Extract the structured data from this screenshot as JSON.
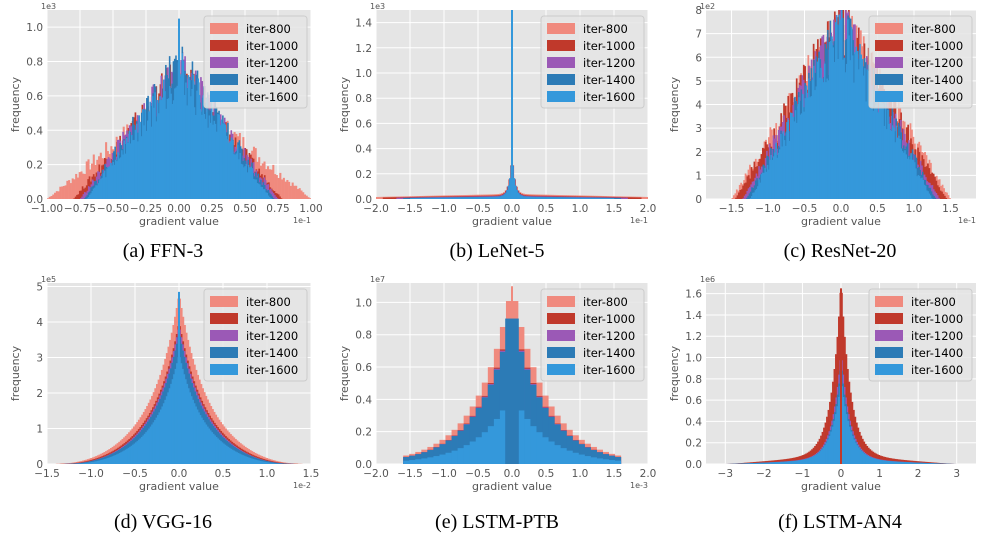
{
  "legend_entries": [
    "iter-800",
    "iter-1000",
    "iter-1200",
    "iter-1400",
    "iter-1600"
  ],
  "series_colors": [
    "#f08a7e",
    "#c0392b",
    "#9b59b6",
    "#2c7bb6",
    "#3498db"
  ],
  "chart_data": [
    {
      "type": "bar",
      "caption": "(a) FFN-3",
      "xlabel": "gradient value",
      "ylabel": "frequency",
      "x_multiplier": "1e-1",
      "y_multiplier": "1e3",
      "xlim": [
        -1.0,
        1.0
      ],
      "ylim": [
        0,
        1.1
      ],
      "xticks": [
        -1.0,
        -0.75,
        -0.5,
        -0.25,
        0.0,
        0.25,
        0.5,
        0.75,
        1.0
      ],
      "xtick_labels": [
        "−1.00",
        "−0.75",
        "−0.50",
        "−0.25",
        "0.00",
        "0.25",
        "0.50",
        "0.75",
        "1.00"
      ],
      "yticks": [
        0.0,
        0.2,
        0.4,
        0.6,
        0.8,
        1.0
      ],
      "ytick_labels": [
        "0.0",
        "0.2",
        "0.4",
        "0.6",
        "0.8",
        "1.0"
      ],
      "shape": "triangle",
      "noisy": true,
      "series": [
        {
          "name": "iter-800",
          "range": [
            -1.0,
            1.0
          ],
          "peak": 0.62
        },
        {
          "name": "iter-1000",
          "range": [
            -0.8,
            0.78
          ],
          "peak": 0.72
        },
        {
          "name": "iter-1200",
          "range": [
            -0.75,
            0.75
          ],
          "peak": 0.76
        },
        {
          "name": "iter-1400",
          "range": [
            -0.72,
            0.72
          ],
          "peak": 0.78
        },
        {
          "name": "iter-1600",
          "range": [
            -0.7,
            0.7
          ],
          "peak": 0.74
        }
      ],
      "max_spike": 1.05,
      "legend": "top-right",
      "grid": true
    },
    {
      "type": "bar",
      "caption": "(b) LeNet-5",
      "xlabel": "gradient value",
      "ylabel": "frequency",
      "x_multiplier": "1e-1",
      "y_multiplier": "1e3",
      "xlim": [
        -2.0,
        2.0
      ],
      "ylim": [
        0,
        1.5
      ],
      "xticks": [
        -2.0,
        -1.5,
        -1.0,
        -0.5,
        0.0,
        0.5,
        1.0,
        1.5,
        2.0
      ],
      "xtick_labels": [
        "−2.0",
        "−1.5",
        "−1.0",
        "−0.5",
        "0.0",
        "0.5",
        "1.0",
        "1.5",
        "2.0"
      ],
      "yticks": [
        0.0,
        0.2,
        0.4,
        0.6,
        0.8,
        1.0,
        1.2,
        1.4
      ],
      "ytick_labels": [
        "0.0",
        "0.2",
        "0.4",
        "0.6",
        "0.8",
        "1.0",
        "1.2",
        "1.4"
      ],
      "shape": "spike",
      "noisy": false,
      "series": [
        {
          "name": "iter-800",
          "range": [
            -2.0,
            2.0
          ],
          "peak": 0.36,
          "floor": 0.04
        },
        {
          "name": "iter-1000",
          "range": [
            -1.9,
            1.9
          ],
          "peak": 0.35,
          "floor": 0.03
        },
        {
          "name": "iter-1200",
          "range": [
            -1.7,
            1.7
          ],
          "peak": 0.34,
          "floor": 0.025
        },
        {
          "name": "iter-1400",
          "range": [
            -1.6,
            1.6
          ],
          "peak": 0.34,
          "floor": 0.02
        },
        {
          "name": "iter-1600",
          "range": [
            -1.5,
            1.5
          ],
          "peak": 0.33,
          "floor": 0.018
        }
      ],
      "max_spike": 1.5,
      "legend": "top-right",
      "grid": true
    },
    {
      "type": "bar",
      "caption": "(c) ResNet-20",
      "xlabel": "gradient value",
      "ylabel": "frequency",
      "x_multiplier": "1e-1",
      "y_multiplier": "1e2",
      "xlim": [
        -1.85,
        1.85
      ],
      "ylim": [
        0,
        8.0
      ],
      "xticks": [
        -1.5,
        -1.0,
        -0.5,
        0.0,
        0.5,
        1.0,
        1.5
      ],
      "xtick_labels": [
        "−1.5",
        "−1.0",
        "−0.5",
        "0.0",
        "0.5",
        "1.0",
        "1.5"
      ],
      "yticks": [
        0,
        1,
        2,
        3,
        4,
        5,
        6,
        7,
        8
      ],
      "ytick_labels": [
        "0",
        "1",
        "2",
        "3",
        "4",
        "5",
        "6",
        "7",
        "8"
      ],
      "shape": "triangle",
      "noisy": true,
      "series": [
        {
          "name": "iter-800",
          "range": [
            -1.5,
            1.5
          ],
          "peak": 7.3
        },
        {
          "name": "iter-1000",
          "range": [
            -1.45,
            1.45
          ],
          "peak": 7.4
        },
        {
          "name": "iter-1200",
          "range": [
            -1.35,
            1.35
          ],
          "peak": 7.2
        },
        {
          "name": "iter-1400",
          "range": [
            -1.3,
            1.3
          ],
          "peak": 7.1
        },
        {
          "name": "iter-1600",
          "range": [
            -1.25,
            1.25
          ],
          "peak": 7.0
        }
      ],
      "max_spike": 7.6,
      "legend": "top-right",
      "grid": true
    },
    {
      "type": "bar",
      "caption": "(d) VGG-16",
      "xlabel": "gradient value",
      "ylabel": "frequency",
      "x_multiplier": "1e-2",
      "y_multiplier": "1e5",
      "xlim": [
        -1.5,
        1.5
      ],
      "ylim": [
        0,
        5.1
      ],
      "xticks": [
        -1.5,
        -1.0,
        -0.5,
        0.0,
        0.5,
        1.0,
        1.5
      ],
      "xtick_labels": [
        "−1.5",
        "−1.0",
        "−0.5",
        "0.0",
        "0.5",
        "1.0",
        "1.5"
      ],
      "yticks": [
        0,
        1,
        2,
        3,
        4,
        5
      ],
      "ytick_labels": [
        "0",
        "1",
        "2",
        "3",
        "4",
        "5"
      ],
      "shape": "cusp",
      "noisy": false,
      "series": [
        {
          "name": "iter-800",
          "range": [
            -1.4,
            1.4
          ],
          "peak": 4.8
        },
        {
          "name": "iter-1000",
          "range": [
            -1.35,
            1.35
          ],
          "peak": 4.0
        },
        {
          "name": "iter-1200",
          "range": [
            -1.3,
            1.3
          ],
          "peak": 3.9
        },
        {
          "name": "iter-1400",
          "range": [
            -1.3,
            1.3
          ],
          "peak": 3.7
        },
        {
          "name": "iter-1600",
          "range": [
            -1.25,
            1.25
          ],
          "peak": 3.1
        }
      ],
      "max_spike": 4.85,
      "legend": "top-right",
      "grid": true
    },
    {
      "type": "bar",
      "caption": "(e) LSTM-PTB",
      "xlabel": "gradient value",
      "ylabel": "frequency",
      "x_multiplier": "1e-3",
      "y_multiplier": "1e7",
      "xlim": [
        -2.0,
        2.0
      ],
      "ylim": [
        0,
        1.12
      ],
      "xticks": [
        -2.0,
        -1.5,
        -1.0,
        -0.5,
        0.0,
        0.5,
        1.0,
        1.5,
        2.0
      ],
      "xtick_labels": [
        "−2.0",
        "−1.5",
        "−1.0",
        "−0.5",
        "0.0",
        "0.5",
        "1.0",
        "1.5",
        "2.0"
      ],
      "yticks": [
        0.0,
        0.2,
        0.4,
        0.6,
        0.8,
        1.0
      ],
      "ytick_labels": [
        "0.0",
        "0.2",
        "0.4",
        "0.6",
        "0.8",
        "1.0"
      ],
      "shape": "coarse",
      "noisy": false,
      "series": [
        {
          "name": "iter-800",
          "range": [
            -1.6,
            1.6
          ],
          "peak": 1.1
        },
        {
          "name": "iter-1000",
          "range": [
            -1.6,
            1.6
          ],
          "peak": 0.92
        },
        {
          "name": "iter-1200",
          "range": [
            -1.6,
            1.6
          ],
          "peak": 0.91
        },
        {
          "name": "iter-1400",
          "range": [
            -1.6,
            1.6
          ],
          "peak": 0.9
        },
        {
          "name": "iter-1600",
          "range": [
            -1.6,
            1.6
          ],
          "peak": 0.43
        }
      ],
      "max_spike": 1.1,
      "legend": "top-right",
      "grid": true
    },
    {
      "type": "bar",
      "caption": "(f) LSTM-AN4",
      "xlabel": "gradient value",
      "ylabel": "frequency",
      "x_multiplier": "",
      "y_multiplier": "1e6",
      "xlim": [
        -3.5,
        3.5
      ],
      "ylim": [
        0,
        1.7
      ],
      "xticks": [
        -3,
        -2,
        -1,
        0,
        1,
        2,
        3
      ],
      "xtick_labels": [
        "−3",
        "−2",
        "−1",
        "0",
        "1",
        "2",
        "3"
      ],
      "yticks": [
        0.0,
        0.2,
        0.4,
        0.6,
        0.8,
        1.0,
        1.2,
        1.4,
        1.6
      ],
      "ytick_labels": [
        "0.0",
        "0.2",
        "0.4",
        "0.6",
        "0.8",
        "1.0",
        "1.2",
        "1.4",
        "1.6"
      ],
      "shape": "laplace",
      "noisy": false,
      "series": [
        {
          "name": "iter-800",
          "range": [
            -3.0,
            3.0
          ],
          "peak": 1.2
        },
        {
          "name": "iter-1000",
          "range": [
            -2.9,
            2.9
          ],
          "peak": 1.65
        },
        {
          "name": "iter-1200",
          "range": [
            -2.7,
            2.7
          ],
          "peak": 1.0
        },
        {
          "name": "iter-1400",
          "range": [
            -2.7,
            2.7
          ],
          "peak": 0.9
        },
        {
          "name": "iter-1600",
          "range": [
            -3.0,
            3.0
          ],
          "peak": 0.75
        }
      ],
      "max_spike": 1.65,
      "legend": "top-right",
      "grid": true
    }
  ]
}
